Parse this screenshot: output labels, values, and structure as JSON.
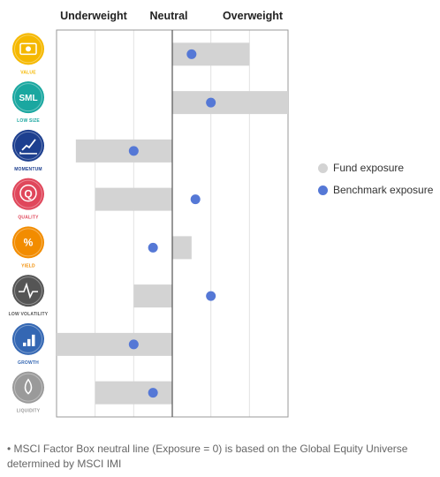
{
  "chart_data": {
    "type": "bar",
    "header_labels": [
      "Underweight",
      "Neutral",
      "Overweight"
    ],
    "xlim": [
      -3,
      3
    ],
    "categories": [
      "VALUE",
      "LOW SIZE",
      "MOMENTUM",
      "QUALITY",
      "YIELD",
      "LOW VOLATILITY",
      "GROWTH",
      "LIQUIDITY"
    ],
    "category_colors": [
      "#f5b800",
      "#1aa7a0",
      "#1d3f8f",
      "#e0475b",
      "#f28c00",
      "#555555",
      "#3467b3",
      "#9a9a9a"
    ],
    "category_icons": [
      "banknote-icon",
      "sml-text-icon",
      "trend-up-icon",
      "quality-seal-icon",
      "percent-icon",
      "heartbeat-icon",
      "bar-growth-icon",
      "drop-icon"
    ],
    "icon_texts": [
      "",
      "SML",
      "",
      "Q",
      "%",
      "",
      "",
      ""
    ],
    "series": [
      {
        "name": "Fund exposure",
        "values": [
          2.0,
          3.0,
          -2.5,
          -2.0,
          0.5,
          -1.0,
          -3.0,
          -2.0
        ],
        "color": "#d3d3d3"
      },
      {
        "name": "Benchmark exposure",
        "values": [
          0.5,
          1.0,
          -1.0,
          0.6,
          -0.5,
          1.0,
          -1.0,
          -0.5
        ],
        "color": "#5578d6"
      }
    ],
    "grid": true
  },
  "footnote": "• MSCI Factor Box neutral line (Exposure = 0) is based on the Global Equity Universe determined by MSCI IMI"
}
